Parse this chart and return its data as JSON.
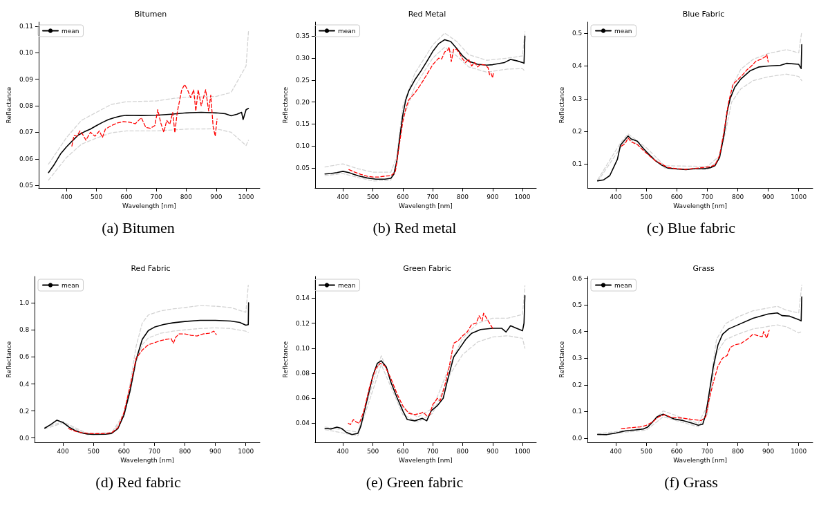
{
  "chart_data": [
    {
      "type": "line",
      "title": "Bitumen",
      "xlabel": "Wavelength [nm]",
      "ylabel": "Reflectance",
      "annotations": [
        "(a) Bitumen"
      ],
      "legend": "top left",
      "grid": false,
      "marker": "none",
      "xlim": [
        307,
        1046
      ],
      "xticks": [
        400,
        500,
        600,
        700,
        800,
        900,
        1000
      ],
      "ylim": [
        0.049,
        0.1115
      ],
      "yticks": [
        0.05,
        0.06,
        0.07,
        0.08,
        0.09,
        {
          "value": 0.1,
          "label": "0.10"
        },
        0.11
      ],
      "series": [
        {
          "color": "#d3d3d3",
          "line_style": "dashed",
          "x": [
            340,
            400,
            450,
            500,
            550,
            600,
            700,
            760,
            800,
            900,
            950,
            1000,
            1008
          ],
          "values": [
            0.058,
            0.068,
            0.0745,
            0.0775,
            0.0805,
            0.0815,
            0.0818,
            0.0828,
            0.0832,
            0.0835,
            0.085,
            0.095,
            0.108
          ]
        },
        {
          "color": "#d3d3d3",
          "line_style": "dashed",
          "x": [
            340,
            400,
            450,
            500,
            550,
            600,
            700,
            800,
            900,
            950,
            1000,
            1008
          ],
          "values": [
            0.052,
            0.0605,
            0.0655,
            0.0678,
            0.0698,
            0.0705,
            0.0705,
            0.0712,
            0.0713,
            0.07,
            0.065,
            0.067
          ]
        },
        {
          "name": "mean",
          "color": "#000000",
          "line_style": "solid",
          "x": [
            340,
            360,
            380,
            400,
            420,
            440,
            460,
            480,
            500,
            520,
            540,
            560,
            580,
            600,
            650,
            700,
            750,
            800,
            850,
            900,
            930,
            950,
            970,
            985,
            990,
            1000,
            1008
          ],
          "values": [
            0.0548,
            0.058,
            0.0618,
            0.0645,
            0.0668,
            0.069,
            0.0702,
            0.0712,
            0.0725,
            0.0737,
            0.0748,
            0.0755,
            0.0761,
            0.0764,
            0.0763,
            0.0764,
            0.0768,
            0.0773,
            0.0775,
            0.0773,
            0.077,
            0.0762,
            0.0768,
            0.0775,
            0.0748,
            0.0785,
            0.079
          ]
        },
        {
          "color": "#ff0000",
          "line_style": "dashed",
          "x": [
            418,
            425,
            435,
            445,
            455,
            465,
            480,
            495,
            510,
            520,
            530,
            550,
            570,
            590,
            610,
            630,
            650,
            665,
            680,
            695,
            705,
            715,
            725,
            735,
            745,
            755,
            762,
            770,
            785,
            795,
            805,
            815,
            825,
            832,
            840,
            850,
            865,
            875,
            882,
            890,
            897,
            903
          ],
          "values": [
            0.0648,
            0.0688,
            0.0685,
            0.0705,
            0.069,
            0.067,
            0.07,
            0.0685,
            0.0705,
            0.068,
            0.0712,
            0.0725,
            0.0735,
            0.074,
            0.0738,
            0.0732,
            0.0755,
            0.0718,
            0.0715,
            0.0725,
            0.0785,
            0.0735,
            0.07,
            0.0745,
            0.073,
            0.0775,
            0.0698,
            0.0775,
            0.086,
            0.088,
            0.0858,
            0.083,
            0.086,
            0.078,
            0.086,
            0.08,
            0.086,
            0.078,
            0.084,
            0.072,
            0.0685,
            0.075
          ]
        }
      ]
    },
    {
      "type": "line",
      "title": "Red Metal",
      "xlabel": "Wavelength [nm]",
      "ylabel": "Reflectance",
      "annotations": [
        "(b) Red metal"
      ],
      "legend": "top left",
      "grid": false,
      "marker": "none",
      "xlim": [
        307,
        1046
      ],
      "xticks": [
        400,
        500,
        600,
        700,
        800,
        900,
        1000
      ],
      "ylim": [
        0.004,
        0.382
      ],
      "yticks": [
        0.05,
        {
          "value": 0.1,
          "label": "0.10"
        },
        0.15,
        {
          "value": 0.2,
          "label": "0.20"
        },
        0.25,
        {
          "value": 0.3,
          "label": "0.30"
        },
        0.35
      ],
      "series": [
        {
          "color": "#d3d3d3",
          "line_style": "dashed",
          "x": [
            340,
            400,
            450,
            500,
            560,
            580,
            600,
            640,
            700,
            740,
            780,
            820,
            880,
            950,
            1000,
            1008
          ],
          "values": [
            0.052,
            0.059,
            0.048,
            0.04,
            0.04,
            0.075,
            0.19,
            0.265,
            0.33,
            0.357,
            0.338,
            0.308,
            0.295,
            0.3,
            0.305,
            0.36
          ]
        },
        {
          "color": "#d3d3d3",
          "line_style": "dashed",
          "x": [
            340,
            400,
            450,
            500,
            560,
            580,
            600,
            640,
            700,
            740,
            780,
            820,
            880,
            950,
            1000,
            1008
          ],
          "values": [
            0.032,
            0.037,
            0.028,
            0.02,
            0.022,
            0.06,
            0.16,
            0.235,
            0.3,
            0.325,
            0.305,
            0.28,
            0.268,
            0.275,
            0.276,
            0.27
          ]
        },
        {
          "name": "mean",
          "color": "#000000",
          "line_style": "solid",
          "x": [
            340,
            360,
            380,
            400,
            420,
            450,
            480,
            510,
            540,
            560,
            570,
            580,
            590,
            600,
            610,
            620,
            640,
            660,
            680,
            700,
            720,
            740,
            760,
            780,
            800,
            820,
            850,
            880,
            900,
            940,
            960,
            980,
            1000,
            1005,
            1008
          ],
          "values": [
            0.036,
            0.037,
            0.039,
            0.042,
            0.039,
            0.032,
            0.027,
            0.024,
            0.024,
            0.026,
            0.035,
            0.065,
            0.12,
            0.17,
            0.205,
            0.225,
            0.25,
            0.27,
            0.292,
            0.315,
            0.333,
            0.342,
            0.338,
            0.322,
            0.305,
            0.293,
            0.286,
            0.284,
            0.285,
            0.29,
            0.297,
            0.294,
            0.29,
            0.288,
            0.35
          ]
        },
        {
          "color": "#ff0000",
          "line_style": "dashed",
          "x": [
            420,
            440,
            460,
            480,
            500,
            520,
            540,
            560,
            575,
            590,
            600,
            610,
            620,
            640,
            660,
            680,
            700,
            720,
            730,
            740,
            750,
            755,
            762,
            770,
            780,
            790,
            800,
            810,
            820,
            830,
            840,
            850,
            860,
            875,
            885,
            890,
            895,
            900,
            903
          ],
          "values": [
            0.046,
            0.04,
            0.035,
            0.031,
            0.029,
            0.029,
            0.031,
            0.032,
            0.04,
            0.11,
            0.155,
            0.185,
            0.205,
            0.22,
            0.24,
            0.262,
            0.285,
            0.3,
            0.298,
            0.314,
            0.318,
            0.325,
            0.292,
            0.32,
            0.32,
            0.31,
            0.298,
            0.29,
            0.298,
            0.282,
            0.29,
            0.28,
            0.286,
            0.284,
            0.278,
            0.262,
            0.265,
            0.255,
            0.268
          ]
        }
      ]
    },
    {
      "type": "line",
      "title": "Blue Fabric",
      "xlabel": "Wavelength [nm]",
      "ylabel": "Reflectance",
      "annotations": [
        "(c) Blue fabric"
      ],
      "legend": "top left",
      "grid": false,
      "marker": "none",
      "xlim": [
        307,
        1046
      ],
      "xticks": [
        400,
        500,
        600,
        700,
        800,
        900,
        1000
      ],
      "ylim": [
        0.027,
        0.534
      ],
      "yticks": [
        0.1,
        0.2,
        0.3,
        0.4,
        0.5
      ],
      "series": [
        {
          "color": "#d3d3d3",
          "line_style": "dashed",
          "x": [
            340,
            415,
            440,
            500,
            560,
            700,
            740,
            760,
            780,
            810,
            850,
            900,
            960,
            1000,
            1010
          ],
          "values": [
            0.052,
            0.165,
            0.192,
            0.15,
            0.095,
            0.093,
            0.125,
            0.23,
            0.335,
            0.39,
            0.42,
            0.438,
            0.45,
            0.44,
            0.505
          ]
        },
        {
          "color": "#d3d3d3",
          "line_style": "dashed",
          "x": [
            340,
            415,
            440,
            500,
            560,
            700,
            740,
            760,
            780,
            810,
            850,
            900,
            960,
            1000,
            1010
          ],
          "values": [
            0.047,
            0.15,
            0.18,
            0.14,
            0.088,
            0.083,
            0.115,
            0.2,
            0.29,
            0.33,
            0.355,
            0.367,
            0.375,
            0.368,
            0.355
          ]
        },
        {
          "name": "mean",
          "color": "#000000",
          "line_style": "solid",
          "x": [
            340,
            360,
            380,
            395,
            405,
            415,
            430,
            440,
            450,
            470,
            490,
            510,
            530,
            550,
            570,
            600,
            630,
            660,
            690,
            710,
            725,
            740,
            755,
            765,
            775,
            790,
            810,
            840,
            870,
            900,
            940,
            960,
            1000,
            1008,
            1010
          ],
          "values": [
            0.049,
            0.052,
            0.065,
            0.095,
            0.115,
            0.158,
            0.175,
            0.186,
            0.177,
            0.17,
            0.148,
            0.128,
            0.11,
            0.097,
            0.088,
            0.085,
            0.083,
            0.086,
            0.086,
            0.089,
            0.095,
            0.12,
            0.19,
            0.26,
            0.3,
            0.335,
            0.36,
            0.385,
            0.397,
            0.4,
            0.402,
            0.408,
            0.405,
            0.392,
            0.465
          ]
        },
        {
          "color": "#ff0000",
          "line_style": "dashed",
          "x": [
            418,
            430,
            440,
            450,
            470,
            490,
            510,
            530,
            550,
            570,
            600,
            630,
            660,
            690,
            710,
            725,
            740,
            755,
            770,
            785,
            800,
            815,
            830,
            845,
            860,
            875,
            890,
            895,
            900
          ],
          "values": [
            0.155,
            0.162,
            0.18,
            0.168,
            0.16,
            0.142,
            0.125,
            0.11,
            0.1,
            0.09,
            0.086,
            0.084,
            0.087,
            0.09,
            0.092,
            0.097,
            0.125,
            0.2,
            0.29,
            0.345,
            0.358,
            0.372,
            0.388,
            0.4,
            0.415,
            0.42,
            0.428,
            0.435,
            0.412
          ]
        }
      ]
    },
    {
      "type": "line",
      "title": "Red Fabric",
      "xlabel": "Wavelength [nm]",
      "ylabel": "Reflectance",
      "annotations": [
        "(d) Red fabric"
      ],
      "legend": "top left",
      "grid": false,
      "marker": "none",
      "xlim": [
        307,
        1046
      ],
      "xticks": [
        400,
        500,
        600,
        700,
        800,
        900,
        1000
      ],
      "ylim": [
        -0.032,
        1.195
      ],
      "yticks": [
        {
          "value": 0,
          "label": "0.0"
        },
        0.2,
        0.4,
        0.6,
        0.8,
        {
          "value": 1,
          "label": "1.0"
        }
      ],
      "series": [
        {
          "color": "#d3d3d3",
          "line_style": "dashed",
          "x": [
            340,
            400,
            480,
            560,
            600,
            620,
            640,
            660,
            680,
            720,
            760,
            800,
            850,
            900,
            950,
            1000,
            1008
          ],
          "values": [
            0.078,
            0.12,
            0.033,
            0.04,
            0.18,
            0.4,
            0.68,
            0.85,
            0.91,
            0.94,
            0.955,
            0.965,
            0.98,
            0.975,
            0.965,
            0.93,
            1.13
          ]
        },
        {
          "color": "#d3d3d3",
          "line_style": "dashed",
          "x": [
            340,
            400,
            480,
            560,
            600,
            620,
            640,
            660,
            680,
            720,
            760,
            800,
            850,
            900,
            950,
            1000,
            1008
          ],
          "values": [
            0.068,
            0.11,
            0.025,
            0.03,
            0.16,
            0.33,
            0.56,
            0.69,
            0.74,
            0.775,
            0.79,
            0.8,
            0.81,
            0.815,
            0.81,
            0.79,
            0.78
          ]
        },
        {
          "name": "mean",
          "color": "#000000",
          "line_style": "solid",
          "x": [
            340,
            360,
            380,
            400,
            420,
            440,
            460,
            480,
            500,
            540,
            560,
            580,
            600,
            620,
            640,
            660,
            680,
            700,
            730,
            760,
            800,
            850,
            900,
            950,
            980,
            1000,
            1008,
            1009
          ],
          "values": [
            0.073,
            0.1,
            0.132,
            0.115,
            0.08,
            0.055,
            0.038,
            0.03,
            0.027,
            0.028,
            0.035,
            0.07,
            0.17,
            0.35,
            0.58,
            0.73,
            0.795,
            0.82,
            0.84,
            0.852,
            0.862,
            0.87,
            0.87,
            0.865,
            0.855,
            0.835,
            0.838,
            1.0
          ]
        },
        {
          "color": "#ff0000",
          "line_style": "dashed",
          "x": [
            418,
            440,
            460,
            480,
            500,
            540,
            560,
            580,
            600,
            620,
            640,
            660,
            680,
            700,
            720,
            740,
            755,
            762,
            770,
            780,
            800,
            820,
            840,
            860,
            880,
            895,
            903
          ],
          "values": [
            0.07,
            0.05,
            0.04,
            0.035,
            0.032,
            0.033,
            0.04,
            0.075,
            0.19,
            0.38,
            0.59,
            0.65,
            0.69,
            0.705,
            0.72,
            0.73,
            0.735,
            0.7,
            0.745,
            0.77,
            0.77,
            0.76,
            0.755,
            0.77,
            0.775,
            0.79,
            0.765
          ]
        }
      ]
    },
    {
      "type": "line",
      "title": "Green Fabric",
      "xlabel": "Wavelength [nm]",
      "ylabel": "Reflectance",
      "annotations": [
        "(e) Green fabric"
      ],
      "legend": "top left",
      "grid": false,
      "marker": "none",
      "xlim": [
        307,
        1046
      ],
      "xticks": [
        400,
        500,
        600,
        700,
        800,
        900,
        1000
      ],
      "ylim": [
        0.0248,
        0.1574
      ],
      "yticks": [
        0.04,
        0.06,
        0.08,
        {
          "value": 0.1,
          "label": "0.10"
        },
        0.12,
        0.14
      ],
      "series": [
        {
          "color": "#d3d3d3",
          "line_style": "dashed",
          "x": [
            340,
            450,
            528,
            600,
            650,
            700,
            760,
            800,
            850,
            900,
            950,
            1000,
            1008
          ],
          "values": [
            0.037,
            0.033,
            0.094,
            0.052,
            0.045,
            0.052,
            0.088,
            0.108,
            0.12,
            0.124,
            0.124,
            0.127,
            0.15
          ]
        },
        {
          "color": "#d3d3d3",
          "line_style": "dashed",
          "x": [
            340,
            450,
            528,
            600,
            650,
            700,
            760,
            800,
            850,
            900,
            950,
            1000,
            1008
          ],
          "values": [
            0.035,
            0.03,
            0.087,
            0.047,
            0.041,
            0.048,
            0.08,
            0.095,
            0.105,
            0.109,
            0.11,
            0.108,
            0.1
          ]
        },
        {
          "name": "mean",
          "color": "#000000",
          "line_style": "solid",
          "x": [
            340,
            360,
            380,
            395,
            410,
            430,
            450,
            460,
            480,
            500,
            515,
            528,
            545,
            560,
            580,
            600,
            615,
            640,
            665,
            680,
            695,
            715,
            735,
            750,
            770,
            790,
            810,
            830,
            860,
            900,
            930,
            945,
            960,
            980,
            1000,
            1005,
            1008
          ],
          "values": [
            0.036,
            0.0355,
            0.037,
            0.036,
            0.033,
            0.031,
            0.032,
            0.038,
            0.058,
            0.078,
            0.088,
            0.09,
            0.085,
            0.073,
            0.061,
            0.05,
            0.043,
            0.042,
            0.044,
            0.042,
            0.05,
            0.054,
            0.06,
            0.075,
            0.093,
            0.1,
            0.107,
            0.112,
            0.115,
            0.116,
            0.116,
            0.113,
            0.118,
            0.116,
            0.114,
            0.12,
            0.142
          ]
        },
        {
          "color": "#ff0000",
          "line_style": "dashed",
          "x": [
            418,
            425,
            435,
            445,
            455,
            470,
            490,
            510,
            525,
            540,
            560,
            580,
            600,
            620,
            640,
            660,
            668,
            680,
            690,
            700,
            710,
            715,
            725,
            740,
            755,
            770,
            785,
            800,
            815,
            830,
            845,
            855,
            865,
            870,
            880,
            890,
            900
          ],
          "values": [
            0.04,
            0.039,
            0.043,
            0.041,
            0.04,
            0.05,
            0.07,
            0.084,
            0.088,
            0.086,
            0.076,
            0.064,
            0.054,
            0.048,
            0.047,
            0.048,
            0.049,
            0.046,
            0.047,
            0.055,
            0.058,
            0.06,
            0.058,
            0.07,
            0.085,
            0.104,
            0.106,
            0.11,
            0.113,
            0.119,
            0.12,
            0.126,
            0.122,
            0.128,
            0.124,
            0.12,
            0.116
          ]
        }
      ]
    },
    {
      "type": "line",
      "title": "Grass",
      "xlabel": "Wavelength [nm]",
      "ylabel": "Reflectance",
      "annotations": [
        "(f) Grass"
      ],
      "legend": "top left",
      "grid": false,
      "marker": "none",
      "xlim": [
        307,
        1046
      ],
      "xticks": [
        400,
        500,
        600,
        700,
        800,
        900,
        1000
      ],
      "ylim": [
        -0.016,
        0.607
      ],
      "yticks": [
        {
          "value": 0,
          "label": "0.0"
        },
        0.1,
        0.2,
        0.3,
        0.4,
        0.5,
        0.6
      ],
      "series": [
        {
          "color": "#d3d3d3",
          "line_style": "dashed",
          "x": [
            340,
            500,
            555,
            670,
            700,
            730,
            760,
            800,
            850,
            930,
            960,
            1000,
            1010
          ],
          "values": [
            0.016,
            0.038,
            0.102,
            0.055,
            0.12,
            0.37,
            0.43,
            0.455,
            0.478,
            0.495,
            0.48,
            0.47,
            0.575
          ]
        },
        {
          "color": "#d3d3d3",
          "line_style": "dashed",
          "x": [
            340,
            500,
            555,
            670,
            700,
            730,
            760,
            800,
            850,
            930,
            960,
            1000,
            1010
          ],
          "values": [
            0.011,
            0.03,
            0.08,
            0.042,
            0.09,
            0.32,
            0.37,
            0.39,
            0.41,
            0.425,
            0.418,
            0.395,
            0.4
          ]
        },
        {
          "name": "mean",
          "color": "#000000",
          "line_style": "solid",
          "x": [
            340,
            370,
            400,
            430,
            460,
            490,
            505,
            520,
            535,
            555,
            570,
            590,
            620,
            650,
            670,
            685,
            695,
            705,
            720,
            735,
            750,
            770,
            800,
            850,
            900,
            930,
            945,
            970,
            1000,
            1008,
            1010
          ],
          "values": [
            0.014,
            0.013,
            0.019,
            0.027,
            0.03,
            0.034,
            0.042,
            0.06,
            0.08,
            0.09,
            0.082,
            0.072,
            0.066,
            0.056,
            0.048,
            0.052,
            0.09,
            0.16,
            0.27,
            0.35,
            0.39,
            0.41,
            0.425,
            0.45,
            0.466,
            0.47,
            0.46,
            0.458,
            0.445,
            0.44,
            0.53
          ]
        },
        {
          "color": "#ff0000",
          "line_style": "dashed",
          "x": [
            418,
            440,
            460,
            480,
            500,
            520,
            540,
            560,
            580,
            620,
            650,
            680,
            695,
            705,
            720,
            735,
            750,
            765,
            775,
            790,
            810,
            830,
            850,
            865,
            880,
            885,
            895,
            903
          ],
          "values": [
            0.035,
            0.038,
            0.04,
            0.042,
            0.048,
            0.06,
            0.08,
            0.088,
            0.078,
            0.075,
            0.07,
            0.066,
            0.08,
            0.14,
            0.21,
            0.27,
            0.3,
            0.31,
            0.34,
            0.35,
            0.355,
            0.37,
            0.39,
            0.385,
            0.38,
            0.4,
            0.375,
            0.405
          ]
        }
      ]
    }
  ]
}
